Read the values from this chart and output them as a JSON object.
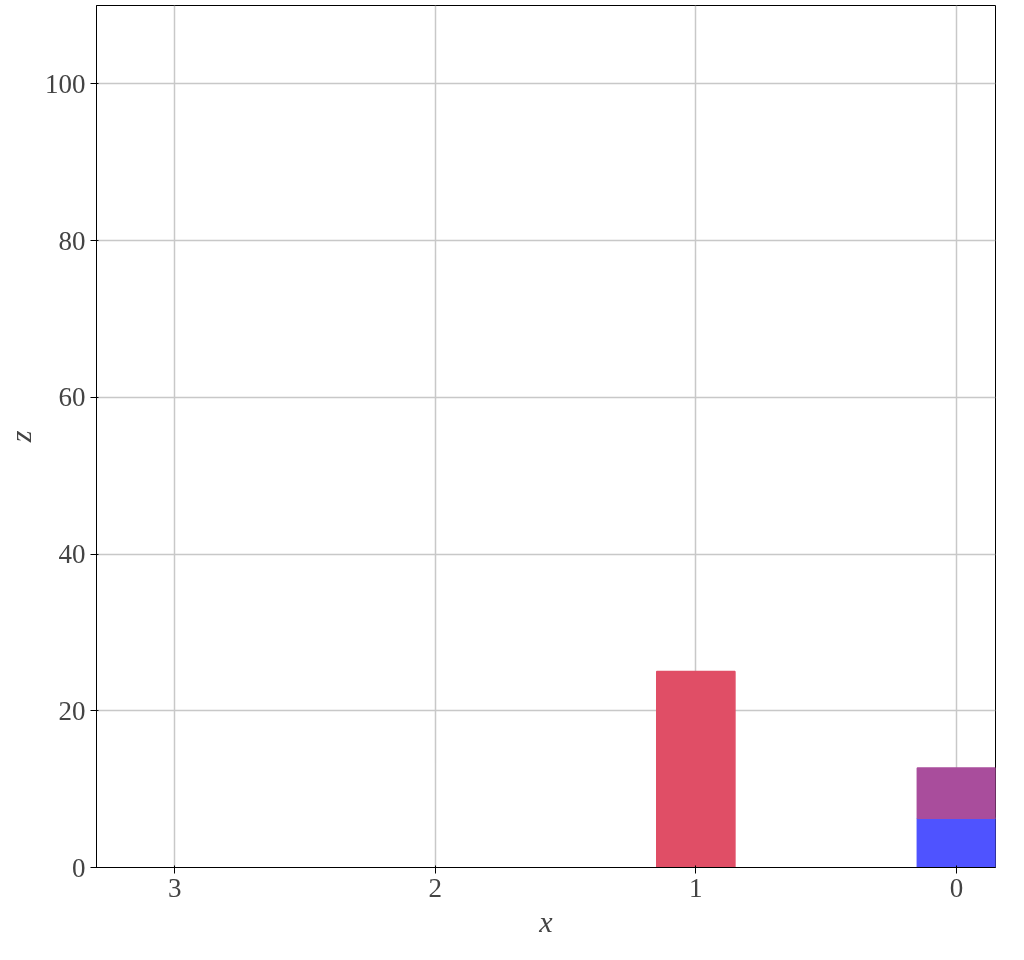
{
  "chart_data": {
    "type": "bar",
    "stacked": true,
    "xlabel": "x",
    "ylabel": "z",
    "x": [
      1,
      0
    ],
    "series": [
      {
        "color": "#e04e66",
        "values": [
          25,
          null
        ]
      },
      {
        "color": "#4f53ff",
        "values": [
          null,
          6.3
        ]
      },
      {
        "color": "#a94d9c",
        "values": [
          null,
          6.4
        ]
      }
    ],
    "xlim": [
      3.3,
      -0.15
    ],
    "xticks": [
      3,
      2,
      1,
      0
    ],
    "ylim": [
      0,
      110
    ],
    "yticks": [
      0,
      20,
      40,
      60,
      80,
      100
    ],
    "grid": true
  }
}
